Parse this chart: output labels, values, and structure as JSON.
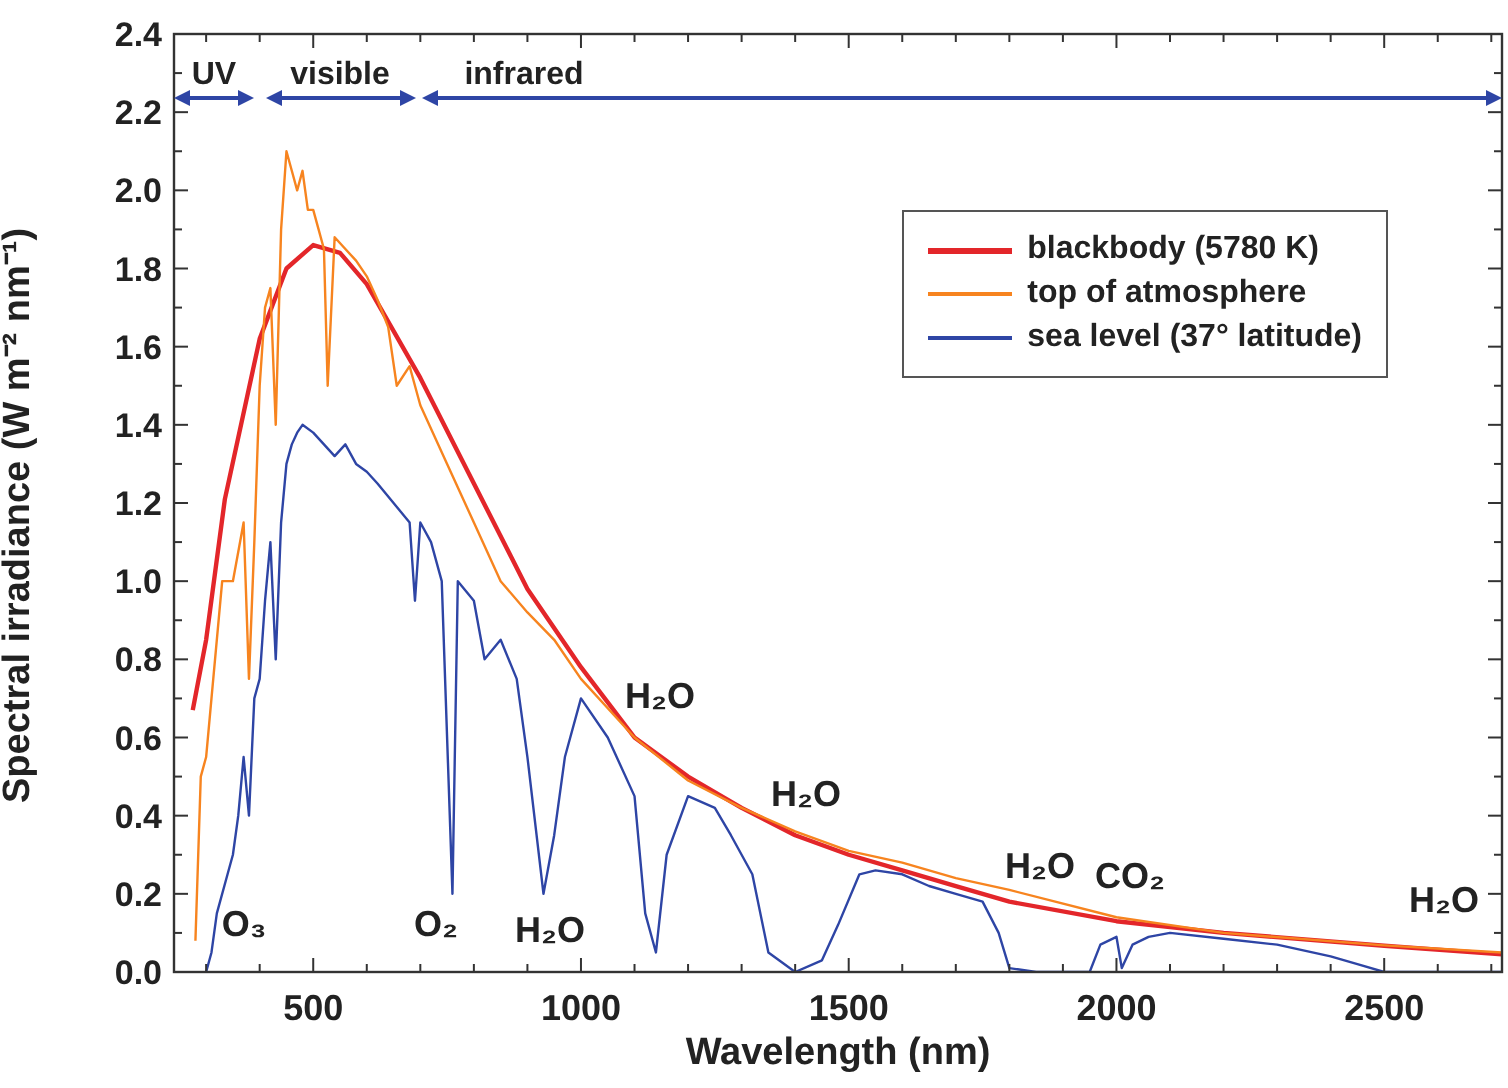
{
  "chart_data": {
    "type": "line",
    "xlabel": "Wavelength (nm)",
    "ylabel": "Spectral irradiance (W m⁻² nm⁻¹)",
    "xlim": [
      240,
      2720
    ],
    "ylim": [
      0,
      2.4
    ],
    "xticks": [
      {
        "value": 300,
        "label": null
      },
      {
        "value": 400,
        "label": null
      },
      500,
      {
        "value": 600,
        "label": null
      },
      {
        "value": 700,
        "label": null
      },
      {
        "value": 800,
        "label": null
      },
      {
        "value": 900,
        "label": null
      },
      1000,
      {
        "value": 1100,
        "label": null
      },
      {
        "value": 1200,
        "label": null
      },
      {
        "value": 1300,
        "label": null
      },
      {
        "value": 1400,
        "label": null
      },
      1500,
      {
        "value": 1600,
        "label": null
      },
      {
        "value": 1700,
        "label": null
      },
      {
        "value": 1800,
        "label": null
      },
      {
        "value": 1900,
        "label": null
      },
      2000,
      {
        "value": 2100,
        "label": null
      },
      {
        "value": 2200,
        "label": null
      },
      {
        "value": 2300,
        "label": null
      },
      {
        "value": 2400,
        "label": null
      },
      2500,
      {
        "value": 2600,
        "label": null
      },
      {
        "value": 2700,
        "label": null
      }
    ],
    "yticks": [
      {
        "value": 0,
        "label": "0.0"
      },
      {
        "value": 0.1,
        "label": null
      },
      0.2,
      {
        "value": 0.3,
        "label": null
      },
      0.4,
      {
        "value": 0.5,
        "label": null
      },
      0.6,
      {
        "value": 0.7,
        "label": null
      },
      0.8,
      {
        "value": 0.9,
        "label": null
      },
      {
        "value": 1,
        "label": "1.0"
      },
      {
        "value": 1.1,
        "label": null
      },
      1.2,
      {
        "value": 1.3,
        "label": null
      },
      1.4,
      {
        "value": 1.5,
        "label": null
      },
      1.6,
      {
        "value": 1.7,
        "label": null
      },
      1.8,
      {
        "value": 1.9,
        "label": null
      },
      {
        "value": 2,
        "label": "2.0"
      },
      {
        "value": 2.1,
        "label": null
      },
      2.2,
      {
        "value": 2.3,
        "label": null
      },
      2.4
    ],
    "grid": false,
    "legend": "top right",
    "marker": "none",
    "line_style": "solid",
    "series": [
      {
        "name": "blackbody (5780 K)",
        "color": "#e3262a",
        "x": [
          275,
          300,
          335,
          400,
          450,
          500,
          550,
          600,
          700,
          800,
          900,
          1000,
          1100,
          1200,
          1300,
          1400,
          1500,
          1600,
          1700,
          1800,
          2000,
          2200,
          2500,
          2720
        ],
        "values": [
          0.67,
          0.85,
          1.21,
          1.62,
          1.8,
          1.86,
          1.84,
          1.76,
          1.52,
          1.25,
          0.98,
          0.78,
          0.6,
          0.5,
          0.42,
          0.35,
          0.3,
          0.26,
          0.22,
          0.18,
          0.13,
          0.1,
          0.067,
          0.045
        ]
      },
      {
        "name": "top of atmosphere",
        "color": "#f7841f",
        "x": [
          280,
          290,
          300,
          310,
          330,
          350,
          370,
          380,
          390,
          400,
          410,
          420,
          430,
          440,
          450,
          460,
          470,
          480,
          490,
          500,
          510,
          520,
          527,
          540,
          560,
          580,
          600,
          620,
          640,
          656,
          680,
          700,
          750,
          800,
          850,
          900,
          950,
          1000,
          1100,
          1200,
          1300,
          1400,
          1500,
          1600,
          1700,
          1800,
          2000,
          2200,
          2500,
          2720
        ],
        "values": [
          0.08,
          0.5,
          0.55,
          0.7,
          1.0,
          1.0,
          1.15,
          0.75,
          1.1,
          1.5,
          1.7,
          1.75,
          1.4,
          1.9,
          2.1,
          2.05,
          2.0,
          2.05,
          1.95,
          1.95,
          1.9,
          1.85,
          1.5,
          1.88,
          1.85,
          1.82,
          1.78,
          1.72,
          1.65,
          1.5,
          1.55,
          1.45,
          1.3,
          1.15,
          1.0,
          0.92,
          0.85,
          0.75,
          0.6,
          0.49,
          0.42,
          0.36,
          0.31,
          0.28,
          0.24,
          0.21,
          0.14,
          0.1,
          0.068,
          0.05
        ]
      },
      {
        "name": "sea level (37° latitude)",
        "color": "#2e45a5",
        "x": [
          300,
          310,
          320,
          340,
          350,
          360,
          370,
          380,
          390,
          400,
          410,
          420,
          430,
          440,
          450,
          460,
          470,
          480,
          500,
          520,
          540,
          560,
          580,
          600,
          620,
          650,
          680,
          690,
          700,
          720,
          740,
          760,
          770,
          800,
          820,
          850,
          880,
          900,
          930,
          950,
          970,
          1000,
          1050,
          1100,
          1120,
          1140,
          1160,
          1200,
          1250,
          1280,
          1320,
          1350,
          1400,
          1450,
          1480,
          1520,
          1550,
          1600,
          1650,
          1700,
          1750,
          1780,
          1800,
          1850,
          1950,
          1970,
          2000,
          2010,
          2030,
          2060,
          2100,
          2200,
          2300,
          2400,
          2450,
          2500,
          2720
        ],
        "values": [
          0,
          0.05,
          0.15,
          0.25,
          0.3,
          0.4,
          0.55,
          0.4,
          0.7,
          0.75,
          0.95,
          1.1,
          0.8,
          1.15,
          1.3,
          1.35,
          1.38,
          1.4,
          1.38,
          1.35,
          1.32,
          1.35,
          1.3,
          1.28,
          1.25,
          1.2,
          1.15,
          0.95,
          1.15,
          1.1,
          1.0,
          0.2,
          1.0,
          0.95,
          0.8,
          0.85,
          0.75,
          0.55,
          0.2,
          0.35,
          0.55,
          0.7,
          0.6,
          0.45,
          0.15,
          0.05,
          0.3,
          0.45,
          0.42,
          0.35,
          0.25,
          0.05,
          0,
          0.03,
          0.12,
          0.25,
          0.26,
          0.25,
          0.22,
          0.2,
          0.18,
          0.1,
          0.01,
          0,
          0,
          0.07,
          0.09,
          0.01,
          0.07,
          0.09,
          0.1,
          0.085,
          0.07,
          0.04,
          0.02,
          0,
          0
        ]
      }
    ],
    "annotations": [
      "UV",
      "visible",
      "infrared",
      "O₃",
      "O₂",
      "H₂O",
      "H₂O",
      "H₂O",
      "H₂O",
      "CO₂",
      "H₂O"
    ]
  }
}
